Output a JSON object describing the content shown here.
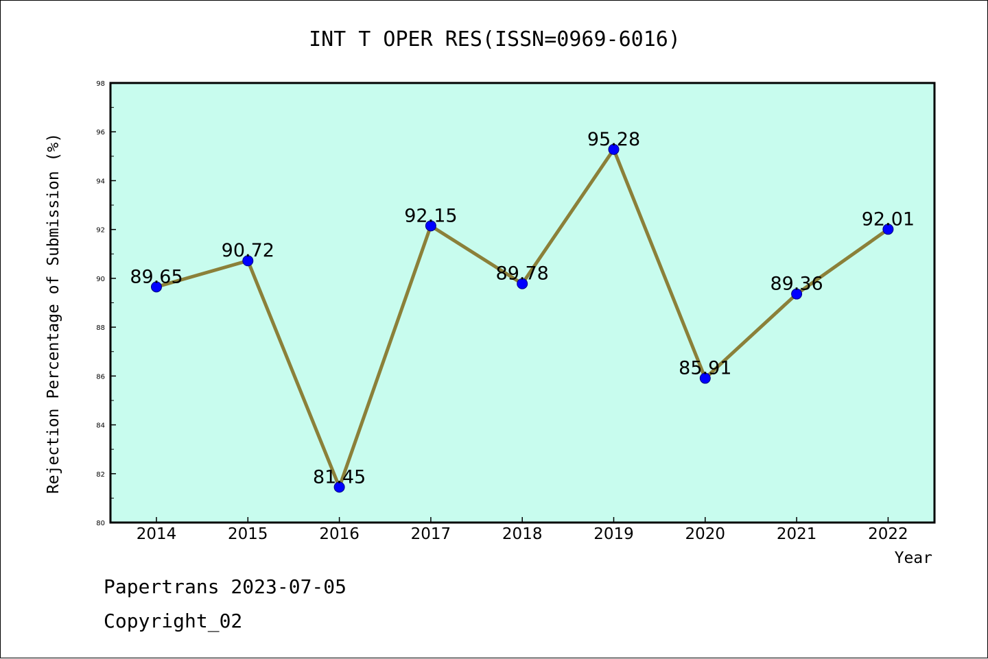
{
  "chart_data": {
    "type": "line",
    "title": "INT T OPER RES(ISSN=0969-6016)",
    "xlabel": "Year",
    "ylabel": "Rejection Percentage of Submission (%)",
    "categories": [
      "2014",
      "2015",
      "2016",
      "2017",
      "2018",
      "2019",
      "2020",
      "2021",
      "2022"
    ],
    "series": [
      {
        "values": [
          89.65,
          90.72,
          81.45,
          92.15,
          89.78,
          95.28,
          85.91,
          89.36,
          92.01
        ]
      }
    ],
    "data_labels": [
      "89.65",
      "90.72",
      "81.45",
      "92.15",
      "89.78",
      "95.28",
      "85.91",
      "89.36",
      "92.01"
    ],
    "ylim": [
      80,
      98
    ],
    "yticks": [
      "80",
      "82",
      "84",
      "86",
      "88",
      "90",
      "92",
      "94",
      "96",
      "98"
    ],
    "grid": false,
    "legend": "none",
    "colors": {
      "plot_background": "#c8fcee",
      "line": "#8b8039",
      "marker": "#0000ff",
      "marker_edge": "#000080",
      "axis": "#000000"
    }
  },
  "footer": {
    "line1": "Papertrans 2023-07-05",
    "line2": "Copyright_02"
  }
}
